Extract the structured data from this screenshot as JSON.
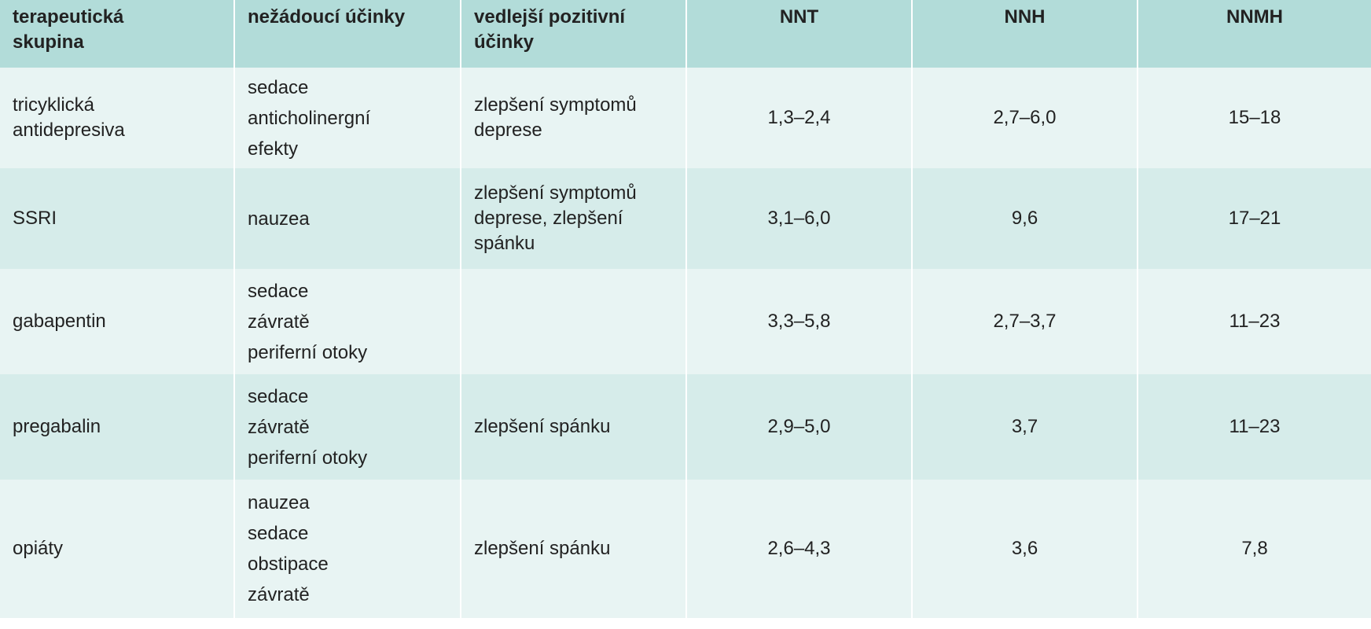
{
  "table": {
    "headers": {
      "group": "terapeutická skupina",
      "adverse": "nežádoucí účinky",
      "positive": "vedlejší pozitivní účinky",
      "nnt": "NNT",
      "nnh": "NNH",
      "nnmh": "NNMH"
    },
    "rows": [
      {
        "group": "tricyklická antidepresiva",
        "adverse": [
          "sedace",
          "anticholinergní",
          "efekty"
        ],
        "positive": "zlepšení symptomů deprese",
        "nnt": "1,3–2,4",
        "nnh": "2,7–6,0",
        "nnmh": "15–18"
      },
      {
        "group": "SSRI",
        "adverse": [
          "nauzea"
        ],
        "positive": "zlepšení symptomů deprese, zlepšení spánku",
        "nnt": "3,1–6,0",
        "nnh": "9,6",
        "nnmh": "17–21"
      },
      {
        "group": "gabapentin",
        "adverse": [
          "sedace",
          "závratě",
          "periferní otoky"
        ],
        "positive": "",
        "nnt": "3,3–5,8",
        "nnh": "2,7–3,7",
        "nnmh": "11–23"
      },
      {
        "group": "pregabalin",
        "adverse": [
          "sedace",
          "závratě",
          "periferní otoky"
        ],
        "positive": "zlepšení spánku",
        "nnt": "2,9–5,0",
        "nnh": "3,7",
        "nnmh": "11–23"
      },
      {
        "group": "opiáty",
        "adverse": [
          "nauzea",
          "sedace",
          "obstipace",
          "závratě"
        ],
        "positive": "zlepšení spánku",
        "nnt": "2,6–4,3",
        "nnh": "3,6",
        "nnmh": "7,8"
      }
    ]
  }
}
